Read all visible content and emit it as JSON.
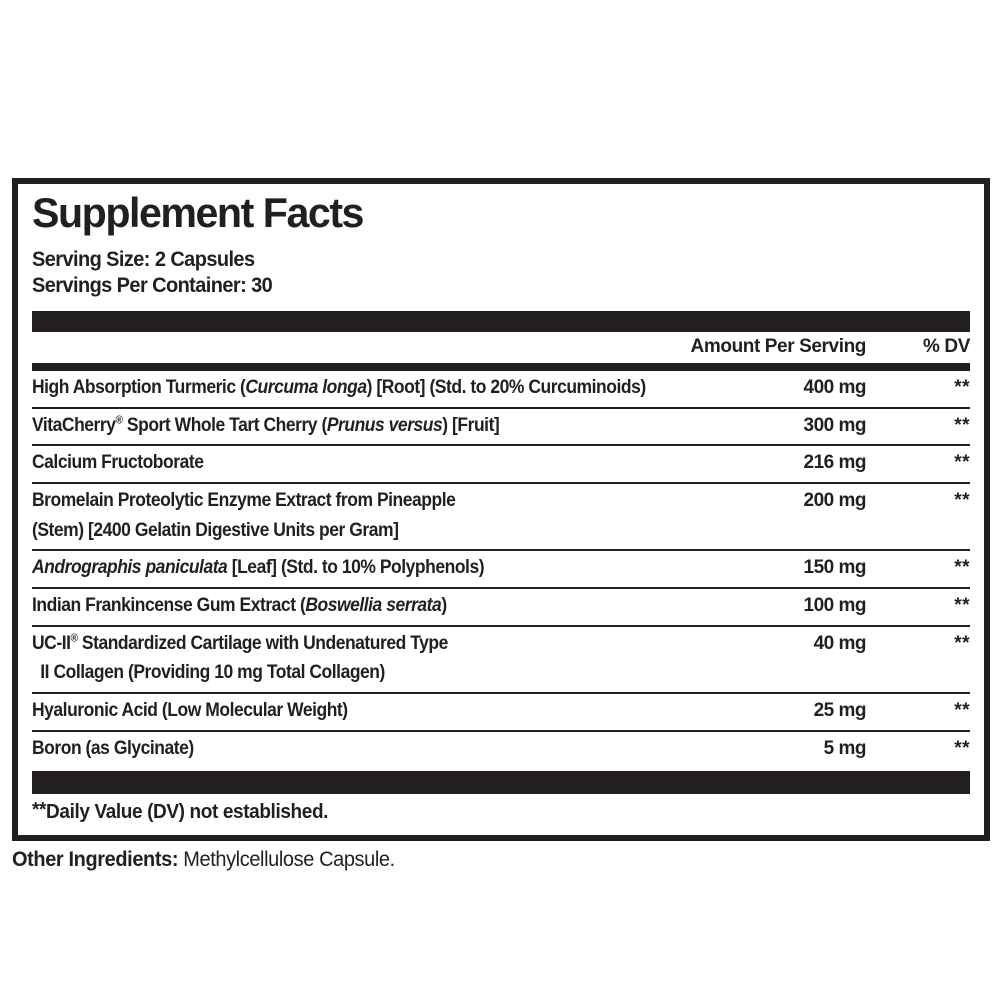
{
  "label": {
    "title": "Supplement Facts",
    "serving_size": "Serving Size: 2 Capsules",
    "servings_per_container": "Servings Per Container: 30",
    "columns": {
      "amount": "Amount Per Serving",
      "dv": "% DV"
    },
    "rows": [
      {
        "lines": [
          {
            "segs": [
              {
                "t": "High Absorption Turmeric ("
              },
              {
                "t": "Curcuma longa",
                "i": true
              },
              {
                "t": ") [Root] (Std. to 20% Curcuminoids)"
              }
            ]
          }
        ],
        "amount": "400 mg",
        "dv": "**"
      },
      {
        "lines": [
          {
            "segs": [
              {
                "t": "VitaCherry"
              },
              {
                "t": "®",
                "sup": true
              },
              {
                "t": " Sport Whole Tart Cherry ("
              },
              {
                "t": "Prunus versus",
                "i": true
              },
              {
                "t": ") [Fruit]"
              }
            ]
          }
        ],
        "amount": "300 mg",
        "dv": "**"
      },
      {
        "lines": [
          {
            "segs": [
              {
                "t": "Calcium Fructoborate"
              }
            ]
          }
        ],
        "amount": "216 mg",
        "dv": "**"
      },
      {
        "lines": [
          {
            "segs": [
              {
                "t": "Bromelain Proteolytic Enzyme Extract from Pineapple"
              }
            ]
          },
          {
            "segs": [
              {
                "t": "(Stem) [2400 Gelatin Digestive Units per Gram]"
              }
            ]
          }
        ],
        "amount": "200 mg",
        "dv": "**"
      },
      {
        "lines": [
          {
            "segs": [
              {
                "t": "Andrographis paniculata",
                "i": true
              },
              {
                "t": " [Leaf] (Std. to 10% Polyphenols)"
              }
            ]
          }
        ],
        "amount": "150 mg",
        "dv": "**"
      },
      {
        "lines": [
          {
            "segs": [
              {
                "t": "Indian Frankincense Gum Extract ("
              },
              {
                "t": "Boswellia serrata",
                "i": true
              },
              {
                "t": ")"
              }
            ]
          }
        ],
        "amount": "100 mg",
        "dv": "**"
      },
      {
        "lines": [
          {
            "segs": [
              {
                "t": "UC-II"
              },
              {
                "t": "®",
                "sup": true
              },
              {
                "t": " Standardized Cartilage with Undenatured Type"
              }
            ]
          },
          {
            "indent": true,
            "segs": [
              {
                "t": "II Collagen (Providing 10 mg Total Collagen)"
              }
            ]
          }
        ],
        "amount": "40 mg",
        "dv": "**"
      },
      {
        "lines": [
          {
            "segs": [
              {
                "t": "Hyaluronic Acid (Low Molecular Weight)"
              }
            ]
          }
        ],
        "amount": "25 mg",
        "dv": "**"
      },
      {
        "lines": [
          {
            "segs": [
              {
                "t": "Boron (as Glycinate)"
              }
            ]
          }
        ],
        "amount": "5 mg",
        "dv": "**"
      }
    ],
    "footnote": {
      "marker": "**",
      "text": "Daily Value (DV) not established."
    },
    "other_ingredients": {
      "label": "Other Ingredients:",
      "text": " Methylcellulose Capsule."
    }
  },
  "colors": {
    "ink": "#231f20",
    "background": "#ffffff"
  }
}
